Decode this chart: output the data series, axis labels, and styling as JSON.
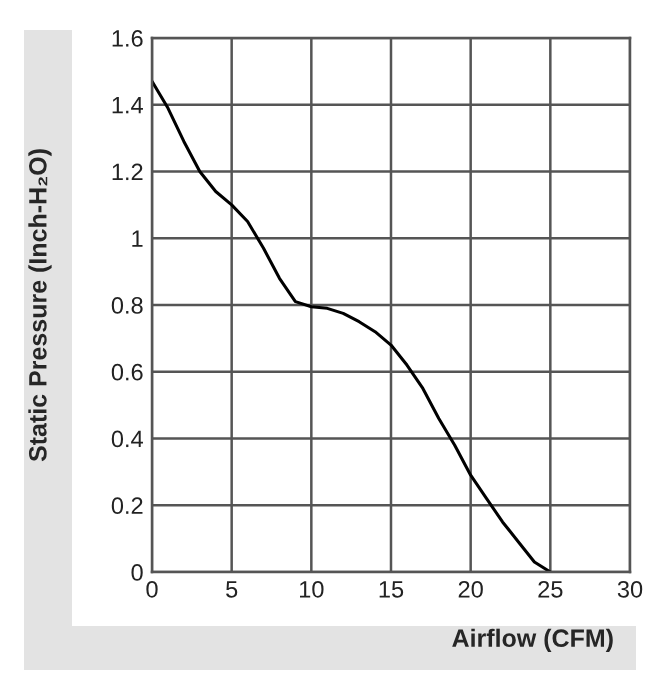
{
  "chart_data": {
    "type": "line",
    "xlabel": "Airflow (CFM)",
    "ylabel": "Static Pressure (Inch-H₂O)",
    "x": [
      0,
      1,
      2,
      3,
      4,
      5,
      6,
      7,
      8,
      9,
      10,
      11,
      12,
      13,
      14,
      15,
      16,
      17,
      18,
      19,
      20,
      21,
      22,
      23,
      24,
      25
    ],
    "series": [
      {
        "color": "#000000",
        "values": [
          1.47,
          1.39,
          1.29,
          1.2,
          1.14,
          1.1,
          1.05,
          0.97,
          0.88,
          0.81,
          0.795,
          0.79,
          0.775,
          0.75,
          0.72,
          0.68,
          0.62,
          0.55,
          0.46,
          0.38,
          0.29,
          0.22,
          0.15,
          0.09,
          0.03,
          0.0
        ]
      }
    ],
    "xlim": [
      0,
      30
    ],
    "xticks": [
      0,
      5,
      10,
      15,
      20,
      25,
      30
    ],
    "ylim": [
      0,
      1.6
    ],
    "yticks": [
      {
        "value": 0,
        "label": "0"
      },
      0.2,
      0.4,
      0.6,
      0.8,
      {
        "value": 1,
        "label": "1"
      },
      1.2,
      1.4,
      1.6
    ],
    "grid": true,
    "marker": "none",
    "line_style": "solid"
  }
}
